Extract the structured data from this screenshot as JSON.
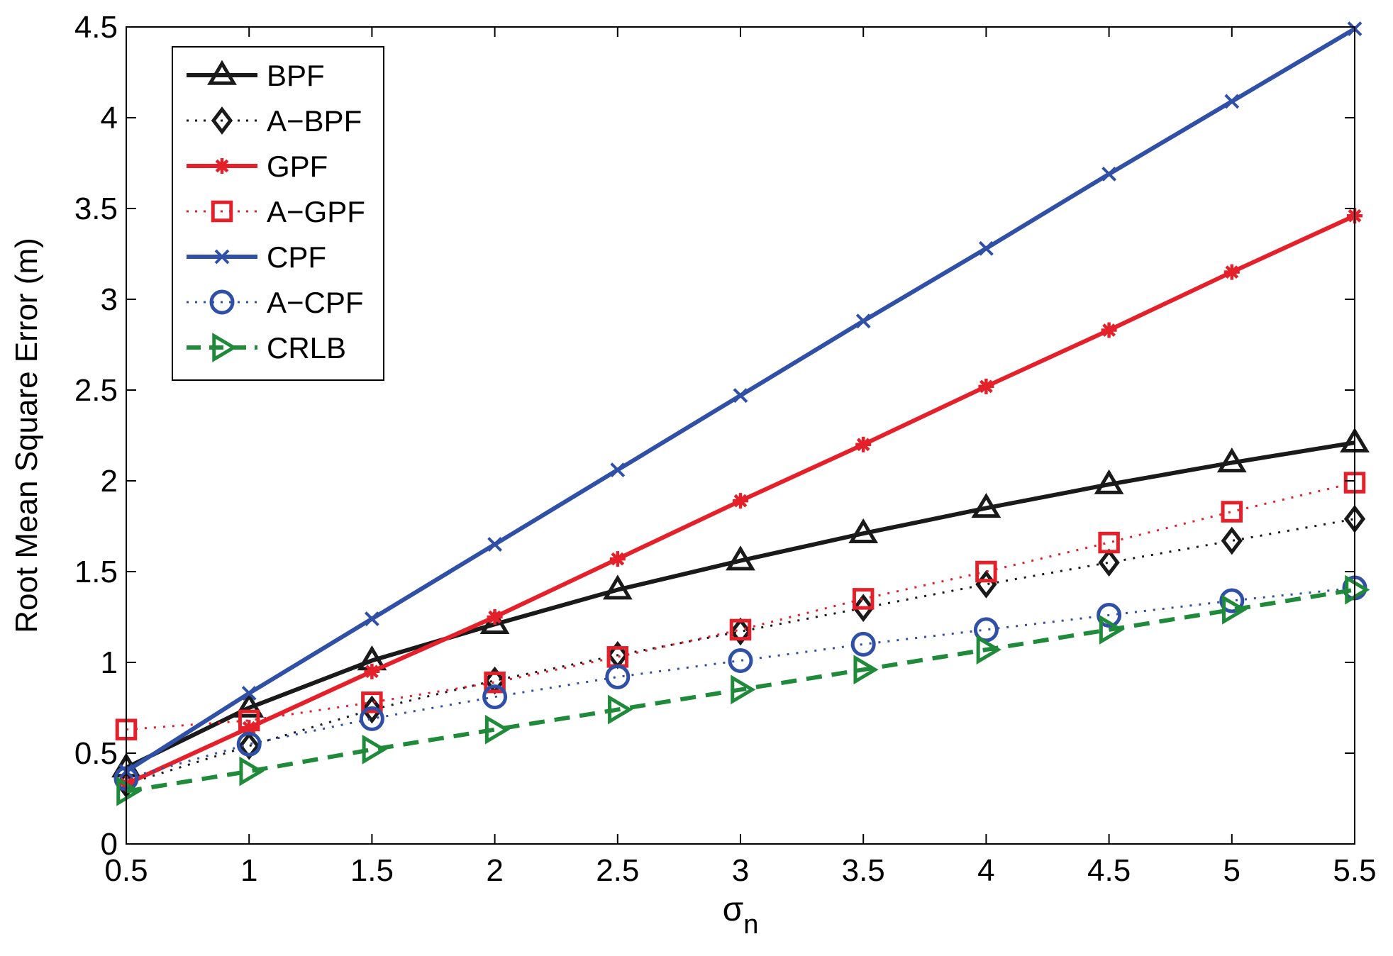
{
  "chart_data": {
    "type": "line",
    "title": "",
    "xlabel": "σ",
    "xlabel_subscript": "n",
    "ylabel": "Root Mean Square Error (m)",
    "xlim": [
      0.5,
      5.5
    ],
    "ylim": [
      0,
      4.5
    ],
    "x": [
      0.5,
      1,
      1.5,
      2,
      2.5,
      3,
      3.5,
      4,
      4.5,
      5,
      5.5
    ],
    "x_tick_labels": [
      "0.5",
      "1",
      "1.5",
      "2",
      "2.5",
      "3",
      "3.5",
      "4",
      "4.5",
      "5",
      "5.5"
    ],
    "y_ticks": [
      0,
      0.5,
      1,
      1.5,
      2,
      2.5,
      3,
      3.5,
      4,
      4.5
    ],
    "y_tick_labels": [
      "0",
      "0.5",
      "1",
      "1.5",
      "2",
      "2.5",
      "3",
      "3.5",
      "4",
      "4.5"
    ],
    "grid": false,
    "legend_position": "top-left",
    "series": [
      {
        "name": "BPF",
        "color": "#1a1a1a",
        "line": "solid",
        "marker": "triangle-up",
        "values": [
          0.42,
          0.75,
          1.01,
          1.21,
          1.4,
          1.56,
          1.71,
          1.85,
          1.98,
          2.1,
          2.21
        ]
      },
      {
        "name": "A−BPF",
        "color": "#1a1a1a",
        "line": "dotted",
        "marker": "diamond",
        "values": [
          0.33,
          0.54,
          0.74,
          0.9,
          1.04,
          1.17,
          1.3,
          1.43,
          1.55,
          1.67,
          1.79
        ]
      },
      {
        "name": "GPF",
        "color": "#e4202a",
        "line": "solid",
        "marker": "asterisk",
        "values": [
          0.33,
          0.64,
          0.95,
          1.25,
          1.57,
          1.89,
          2.2,
          2.52,
          2.83,
          3.15,
          3.46
        ]
      },
      {
        "name": "A−GPF",
        "color": "#e4202a",
        "line": "dotted",
        "marker": "square",
        "values": [
          0.63,
          0.68,
          0.78,
          0.89,
          1.03,
          1.18,
          1.35,
          1.5,
          1.66,
          1.83,
          1.99
        ]
      },
      {
        "name": "CPF",
        "color": "#3050a8",
        "line": "solid",
        "marker": "x",
        "values": [
          0.4,
          0.83,
          1.24,
          1.65,
          2.06,
          2.47,
          2.88,
          3.28,
          3.69,
          4.09,
          4.49
        ]
      },
      {
        "name": "A−CPF",
        "color": "#3050a8",
        "line": "dotted",
        "marker": "circle",
        "values": [
          0.36,
          0.55,
          0.69,
          0.81,
          0.92,
          1.01,
          1.1,
          1.18,
          1.26,
          1.34,
          1.41
        ]
      },
      {
        "name": "CRLB",
        "color": "#1e8a3a",
        "line": "dashed",
        "marker": "triangle-right",
        "values": [
          0.29,
          0.4,
          0.52,
          0.63,
          0.74,
          0.85,
          0.96,
          1.07,
          1.18,
          1.29,
          1.4
        ]
      }
    ]
  }
}
